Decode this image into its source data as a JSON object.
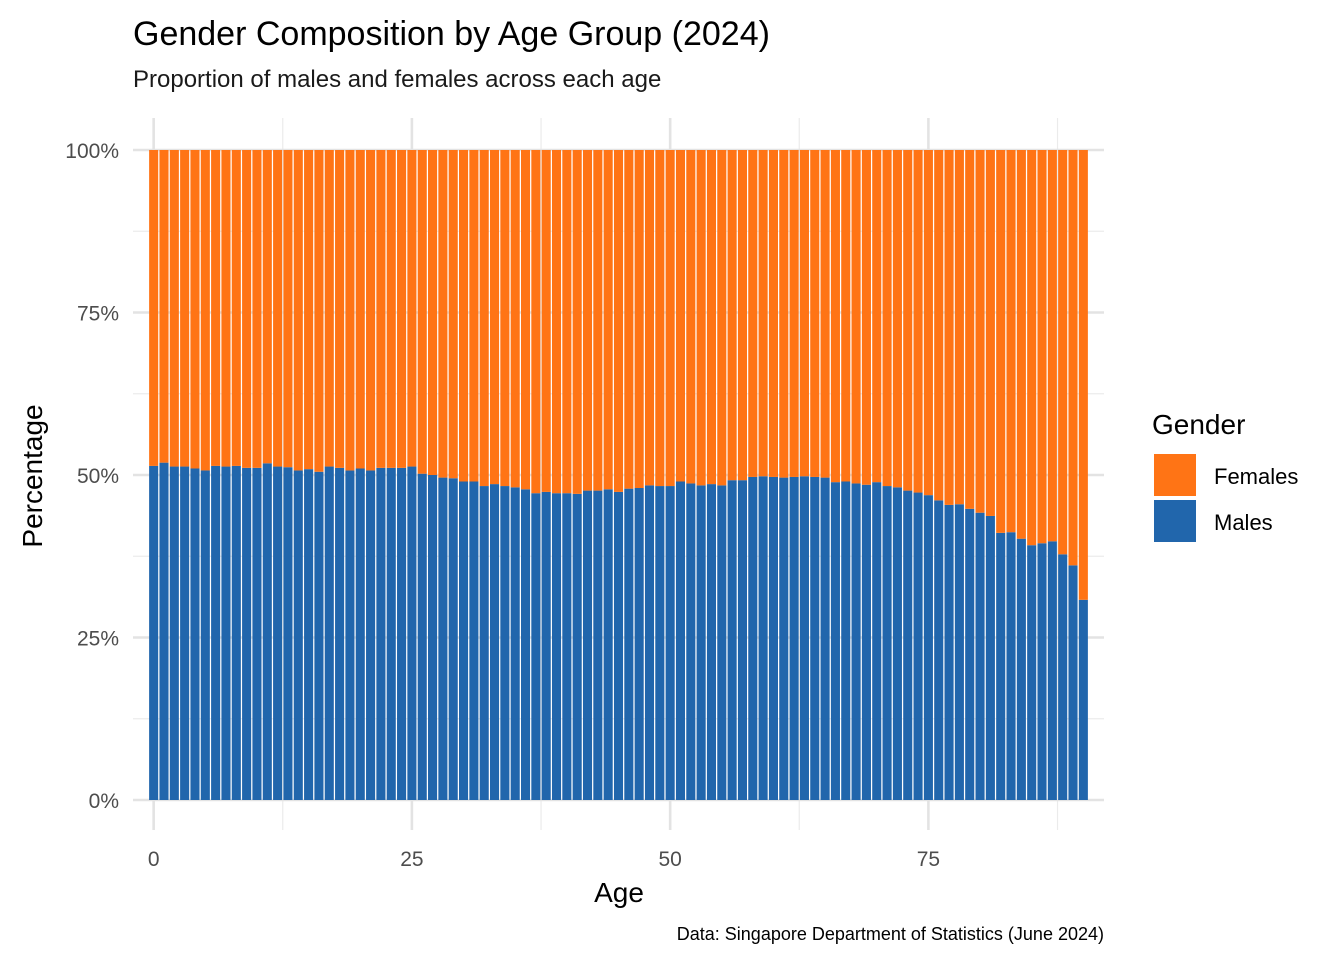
{
  "chart_data": {
    "type": "bar",
    "stacked": true,
    "normalized": true,
    "title": "Gender Composition by Age Group (2024)",
    "subtitle": "Proportion of males and females across each age",
    "xlabel": "Age",
    "ylabel": "Percentage",
    "caption": "Data: Singapore Department of Statistics (June 2024)",
    "xlim": [
      -2,
      92
    ],
    "ylim": [
      0,
      1
    ],
    "x_ticks": [
      0,
      25,
      50,
      75
    ],
    "x_tick_labels": [
      "0",
      "25",
      "50",
      "75"
    ],
    "y_ticks": [
      0,
      0.25,
      0.5,
      0.75,
      1.0
    ],
    "y_tick_labels": [
      "0%",
      "25%",
      "50%",
      "75%",
      "100%"
    ],
    "grid": true,
    "legend": {
      "title": "Gender",
      "position": "right",
      "entries": [
        "Females",
        "Males"
      ]
    },
    "x": [
      0,
      1,
      2,
      3,
      4,
      5,
      6,
      7,
      8,
      9,
      10,
      11,
      12,
      13,
      14,
      15,
      16,
      17,
      18,
      19,
      20,
      21,
      22,
      23,
      24,
      25,
      26,
      27,
      28,
      29,
      30,
      31,
      32,
      33,
      34,
      35,
      36,
      37,
      38,
      39,
      40,
      41,
      42,
      43,
      44,
      45,
      46,
      47,
      48,
      49,
      50,
      51,
      52,
      53,
      54,
      55,
      56,
      57,
      58,
      59,
      60,
      61,
      62,
      63,
      64,
      65,
      66,
      67,
      68,
      69,
      70,
      71,
      72,
      73,
      74,
      75,
      76,
      77,
      78,
      79,
      80,
      81,
      82,
      83,
      84,
      85,
      86,
      87,
      88,
      89,
      90
    ],
    "series": [
      {
        "name": "Males",
        "color": "#2166ac",
        "values": [
          0.514,
          0.519,
          0.513,
          0.513,
          0.51,
          0.507,
          0.514,
          0.513,
          0.514,
          0.511,
          0.511,
          0.518,
          0.513,
          0.512,
          0.507,
          0.509,
          0.505,
          0.513,
          0.511,
          0.507,
          0.51,
          0.507,
          0.511,
          0.511,
          0.511,
          0.513,
          0.502,
          0.5,
          0.496,
          0.495,
          0.49,
          0.49,
          0.483,
          0.486,
          0.483,
          0.481,
          0.478,
          0.472,
          0.474,
          0.472,
          0.472,
          0.471,
          0.476,
          0.476,
          0.478,
          0.474,
          0.479,
          0.48,
          0.484,
          0.483,
          0.483,
          0.49,
          0.487,
          0.484,
          0.486,
          0.484,
          0.492,
          0.492,
          0.497,
          0.498,
          0.497,
          0.496,
          0.497,
          0.498,
          0.497,
          0.496,
          0.489,
          0.49,
          0.487,
          0.485,
          0.489,
          0.483,
          0.481,
          0.476,
          0.473,
          0.469,
          0.461,
          0.454,
          0.455,
          0.448,
          0.442,
          0.437,
          0.411,
          0.412,
          0.402,
          0.392,
          0.395,
          0.398,
          0.378,
          0.361,
          0.308
        ]
      },
      {
        "name": "Females",
        "color": "#ff7415",
        "values": [
          0.486,
          0.481,
          0.487,
          0.487,
          0.49,
          0.493,
          0.486,
          0.487,
          0.486,
          0.489,
          0.489,
          0.482,
          0.487,
          0.488,
          0.493,
          0.491,
          0.495,
          0.487,
          0.489,
          0.493,
          0.49,
          0.493,
          0.489,
          0.489,
          0.489,
          0.487,
          0.498,
          0.5,
          0.504,
          0.505,
          0.51,
          0.51,
          0.517,
          0.514,
          0.517,
          0.519,
          0.522,
          0.528,
          0.526,
          0.528,
          0.528,
          0.529,
          0.524,
          0.524,
          0.522,
          0.526,
          0.521,
          0.52,
          0.516,
          0.517,
          0.517,
          0.51,
          0.513,
          0.516,
          0.514,
          0.516,
          0.508,
          0.508,
          0.503,
          0.502,
          0.503,
          0.504,
          0.503,
          0.502,
          0.503,
          0.504,
          0.511,
          0.51,
          0.513,
          0.515,
          0.511,
          0.517,
          0.519,
          0.524,
          0.527,
          0.531,
          0.539,
          0.546,
          0.545,
          0.552,
          0.558,
          0.563,
          0.589,
          0.588,
          0.598,
          0.608,
          0.605,
          0.602,
          0.622,
          0.639,
          0.692
        ]
      }
    ]
  }
}
